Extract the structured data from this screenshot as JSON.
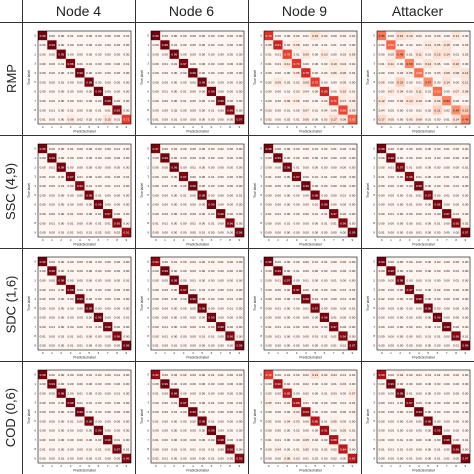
{
  "columns": [
    "Node 4",
    "Node 6",
    "Node 9",
    "Attacker"
  ],
  "rows": [
    "RMP",
    "SSC (4,9)",
    "SDC (1,6)",
    "COD (0,6)"
  ],
  "axis_labels": {
    "x": "Predicted label",
    "y": "True label"
  },
  "chart_data": [
    {
      "type": "heatmap",
      "row": "RMP",
      "col": "Node 4",
      "diag": [
        0.98,
        0.99,
        0.99,
        0.96,
        0.99,
        0.98,
        0.99,
        0.98,
        0.95,
        0.71
      ],
      "offmax": 0.15
    },
    {
      "type": "heatmap",
      "row": "RMP",
      "col": "Node 6",
      "diag": [
        0.99,
        0.98,
        0.99,
        0.97,
        0.99,
        0.99,
        0.98,
        0.98,
        0.96,
        0.97
      ],
      "offmax": 0.05
    },
    {
      "type": "heatmap",
      "row": "RMP",
      "col": "Node 9",
      "diag": [
        0.74,
        0.81,
        0.7,
        0.73,
        0.78,
        0.72,
        0.8,
        0.71,
        0.69,
        0.62
      ],
      "offmax": 0.22
    },
    {
      "type": "heatmap",
      "row": "RMP",
      "col": "Attacker",
      "diag": [
        0.55,
        0.62,
        0.48,
        0.5,
        0.58,
        0.47,
        0.6,
        0.52,
        0.46,
        0.49
      ],
      "offmax": 0.3
    },
    {
      "type": "heatmap",
      "row": "SSC (4,9)",
      "col": "Node 4",
      "diag": [
        0.98,
        0.99,
        0.98,
        0.97,
        0.96,
        0.98,
        0.99,
        0.97,
        0.95,
        0.91
      ],
      "offmax": 0.06
    },
    {
      "type": "heatmap",
      "row": "SSC (4,9)",
      "col": "Node 6",
      "diag": [
        0.97,
        0.99,
        0.99,
        0.97,
        0.99,
        0.98,
        0.99,
        0.98,
        0.96,
        0.98
      ],
      "offmax": 0.05
    },
    {
      "type": "heatmap",
      "row": "SSC (4,9)",
      "col": "Node 9",
      "diag": [
        0.98,
        0.99,
        0.98,
        0.97,
        0.99,
        0.98,
        0.98,
        0.97,
        0.96,
        0.99
      ],
      "offmax": 0.05
    },
    {
      "type": "heatmap",
      "row": "SSC (4,9)",
      "col": "Attacker",
      "diag": [
        0.98,
        0.98,
        0.97,
        0.96,
        0.98,
        0.97,
        0.98,
        0.97,
        0.95,
        0.97
      ],
      "offmax": 0.05
    },
    {
      "type": "heatmap",
      "row": "SDC (1,6)",
      "col": "Node 4",
      "diag": [
        0.99,
        0.98,
        0.98,
        0.98,
        0.99,
        0.99,
        0.99,
        0.98,
        0.96,
        0.98
      ],
      "offmax": 0.15
    },
    {
      "type": "heatmap",
      "row": "SDC (1,6)",
      "col": "Node 6",
      "diag": [
        0.94,
        0.99,
        0.98,
        0.97,
        0.99,
        0.98,
        0.99,
        0.98,
        0.96,
        0.98
      ],
      "offmax": 0.05
    },
    {
      "type": "heatmap",
      "row": "SDC (1,6)",
      "col": "Node 9",
      "diag": [
        0.98,
        0.99,
        0.97,
        0.97,
        0.98,
        0.97,
        0.98,
        0.97,
        0.96,
        0.97
      ],
      "offmax": 0.12
    },
    {
      "type": "heatmap",
      "row": "SDC (1,6)",
      "col": "Attacker",
      "diag": [
        0.99,
        0.98,
        0.98,
        0.97,
        0.98,
        0.98,
        0.99,
        0.98,
        0.96,
        0.98
      ],
      "offmax": 0.05
    },
    {
      "type": "heatmap",
      "row": "COD (0,6)",
      "col": "Node 4",
      "diag": [
        0.98,
        0.99,
        0.98,
        0.98,
        0.99,
        0.98,
        0.99,
        0.98,
        0.97,
        0.96
      ],
      "offmax": 0.15
    },
    {
      "type": "heatmap",
      "row": "COD (0,6)",
      "col": "Node 6",
      "diag": [
        0.92,
        0.99,
        0.98,
        0.97,
        0.99,
        0.98,
        0.99,
        0.98,
        0.96,
        0.95
      ],
      "offmax": 0.05
    },
    {
      "type": "heatmap",
      "row": "COD (0,6)",
      "col": "Node 9",
      "diag": [
        0.72,
        0.9,
        0.85,
        0.88,
        0.93,
        0.86,
        0.91,
        0.88,
        0.84,
        0.85
      ],
      "offmax": 0.14
    },
    {
      "type": "heatmap",
      "row": "COD (0,6)",
      "col": "Attacker",
      "diag": [
        0.9,
        0.99,
        0.98,
        0.97,
        0.99,
        0.98,
        0.99,
        0.98,
        0.96,
        0.97
      ],
      "offmax": 0.05
    }
  ]
}
